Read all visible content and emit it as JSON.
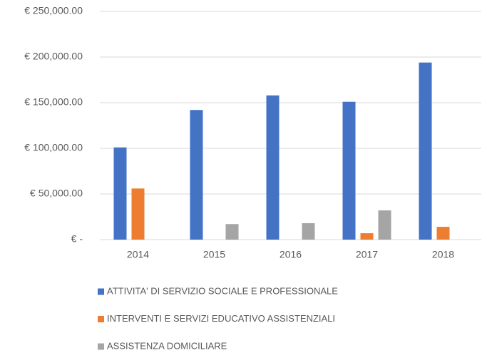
{
  "chart_data": {
    "type": "bar",
    "categories": [
      "2014",
      "2015",
      "2016",
      "2017",
      "2018"
    ],
    "series": [
      {
        "name": "ATTIVITA' DI SERVIZIO SOCIALE E PROFESSIONALE",
        "color": "#4472c4",
        "values": [
          101000,
          142000,
          158000,
          151000,
          194000
        ]
      },
      {
        "name": "INTERVENTI E SERVIZI EDUCATIVO ASSISTENZIALI",
        "color": "#ed7d31",
        "values": [
          56000,
          0,
          0,
          7000,
          14000
        ]
      },
      {
        "name": "ASSISTENZA DOMICILIARE",
        "color": "#a5a5a5",
        "values": [
          0,
          17000,
          18000,
          32000,
          0
        ]
      }
    ],
    "ylim": [
      0,
      250000
    ],
    "yticks": [
      {
        "value": 0,
        "label": "€ -"
      },
      {
        "value": 50000,
        "label": "€ 50,000.00"
      },
      {
        "value": 100000,
        "label": "€ 100,000.00"
      },
      {
        "value": 150000,
        "label": "€ 150,000.00"
      },
      {
        "value": 200000,
        "label": "€ 200,000.00"
      },
      {
        "value": 250000,
        "label": "€ 250,000.00"
      }
    ],
    "grid": true,
    "legend": "bottom"
  }
}
